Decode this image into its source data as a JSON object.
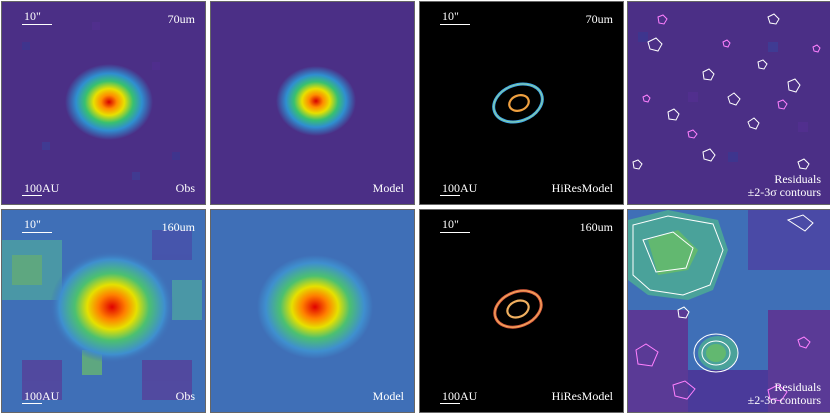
{
  "panels": [
    {
      "id": "r1c1",
      "kind": "obs",
      "scale_arcsec": "10\"",
      "band": "70um",
      "scale_au": "100AU",
      "label": "Obs"
    },
    {
      "id": "r1c2",
      "kind": "model",
      "scale_arcsec": "",
      "band": "",
      "scale_au": "",
      "label": "Model"
    },
    {
      "id": "r1c3",
      "kind": "hires",
      "scale_arcsec": "10\"",
      "band": "70um",
      "scale_au": "100AU",
      "label": "HiResModel"
    },
    {
      "id": "r1c4",
      "kind": "residual",
      "scale_arcsec": "",
      "band": "",
      "scale_au": "",
      "label": "Residuals",
      "label2": "±2-3σ contours"
    },
    {
      "id": "r2c1",
      "kind": "obs",
      "scale_arcsec": "10\"",
      "band": "160um",
      "scale_au": "100AU",
      "label": "Obs"
    },
    {
      "id": "r2c2",
      "kind": "model",
      "scale_arcsec": "",
      "band": "",
      "scale_au": "",
      "label": "Model"
    },
    {
      "id": "r2c3",
      "kind": "hires",
      "scale_arcsec": "10\"",
      "band": "160um",
      "scale_au": "100AU",
      "label": "HiResModel"
    },
    {
      "id": "r2c4",
      "kind": "residual",
      "scale_arcsec": "",
      "band": "",
      "scale_au": "",
      "label": "Residuals",
      "label2": "±2-3σ contours"
    }
  ],
  "colors": {
    "background_purple": "#4b2f86",
    "background_blue": "#3f6fb7",
    "hires_background": "#000000",
    "contour_positive": "#ffffff",
    "contour_negative": "#ff80ff"
  }
}
